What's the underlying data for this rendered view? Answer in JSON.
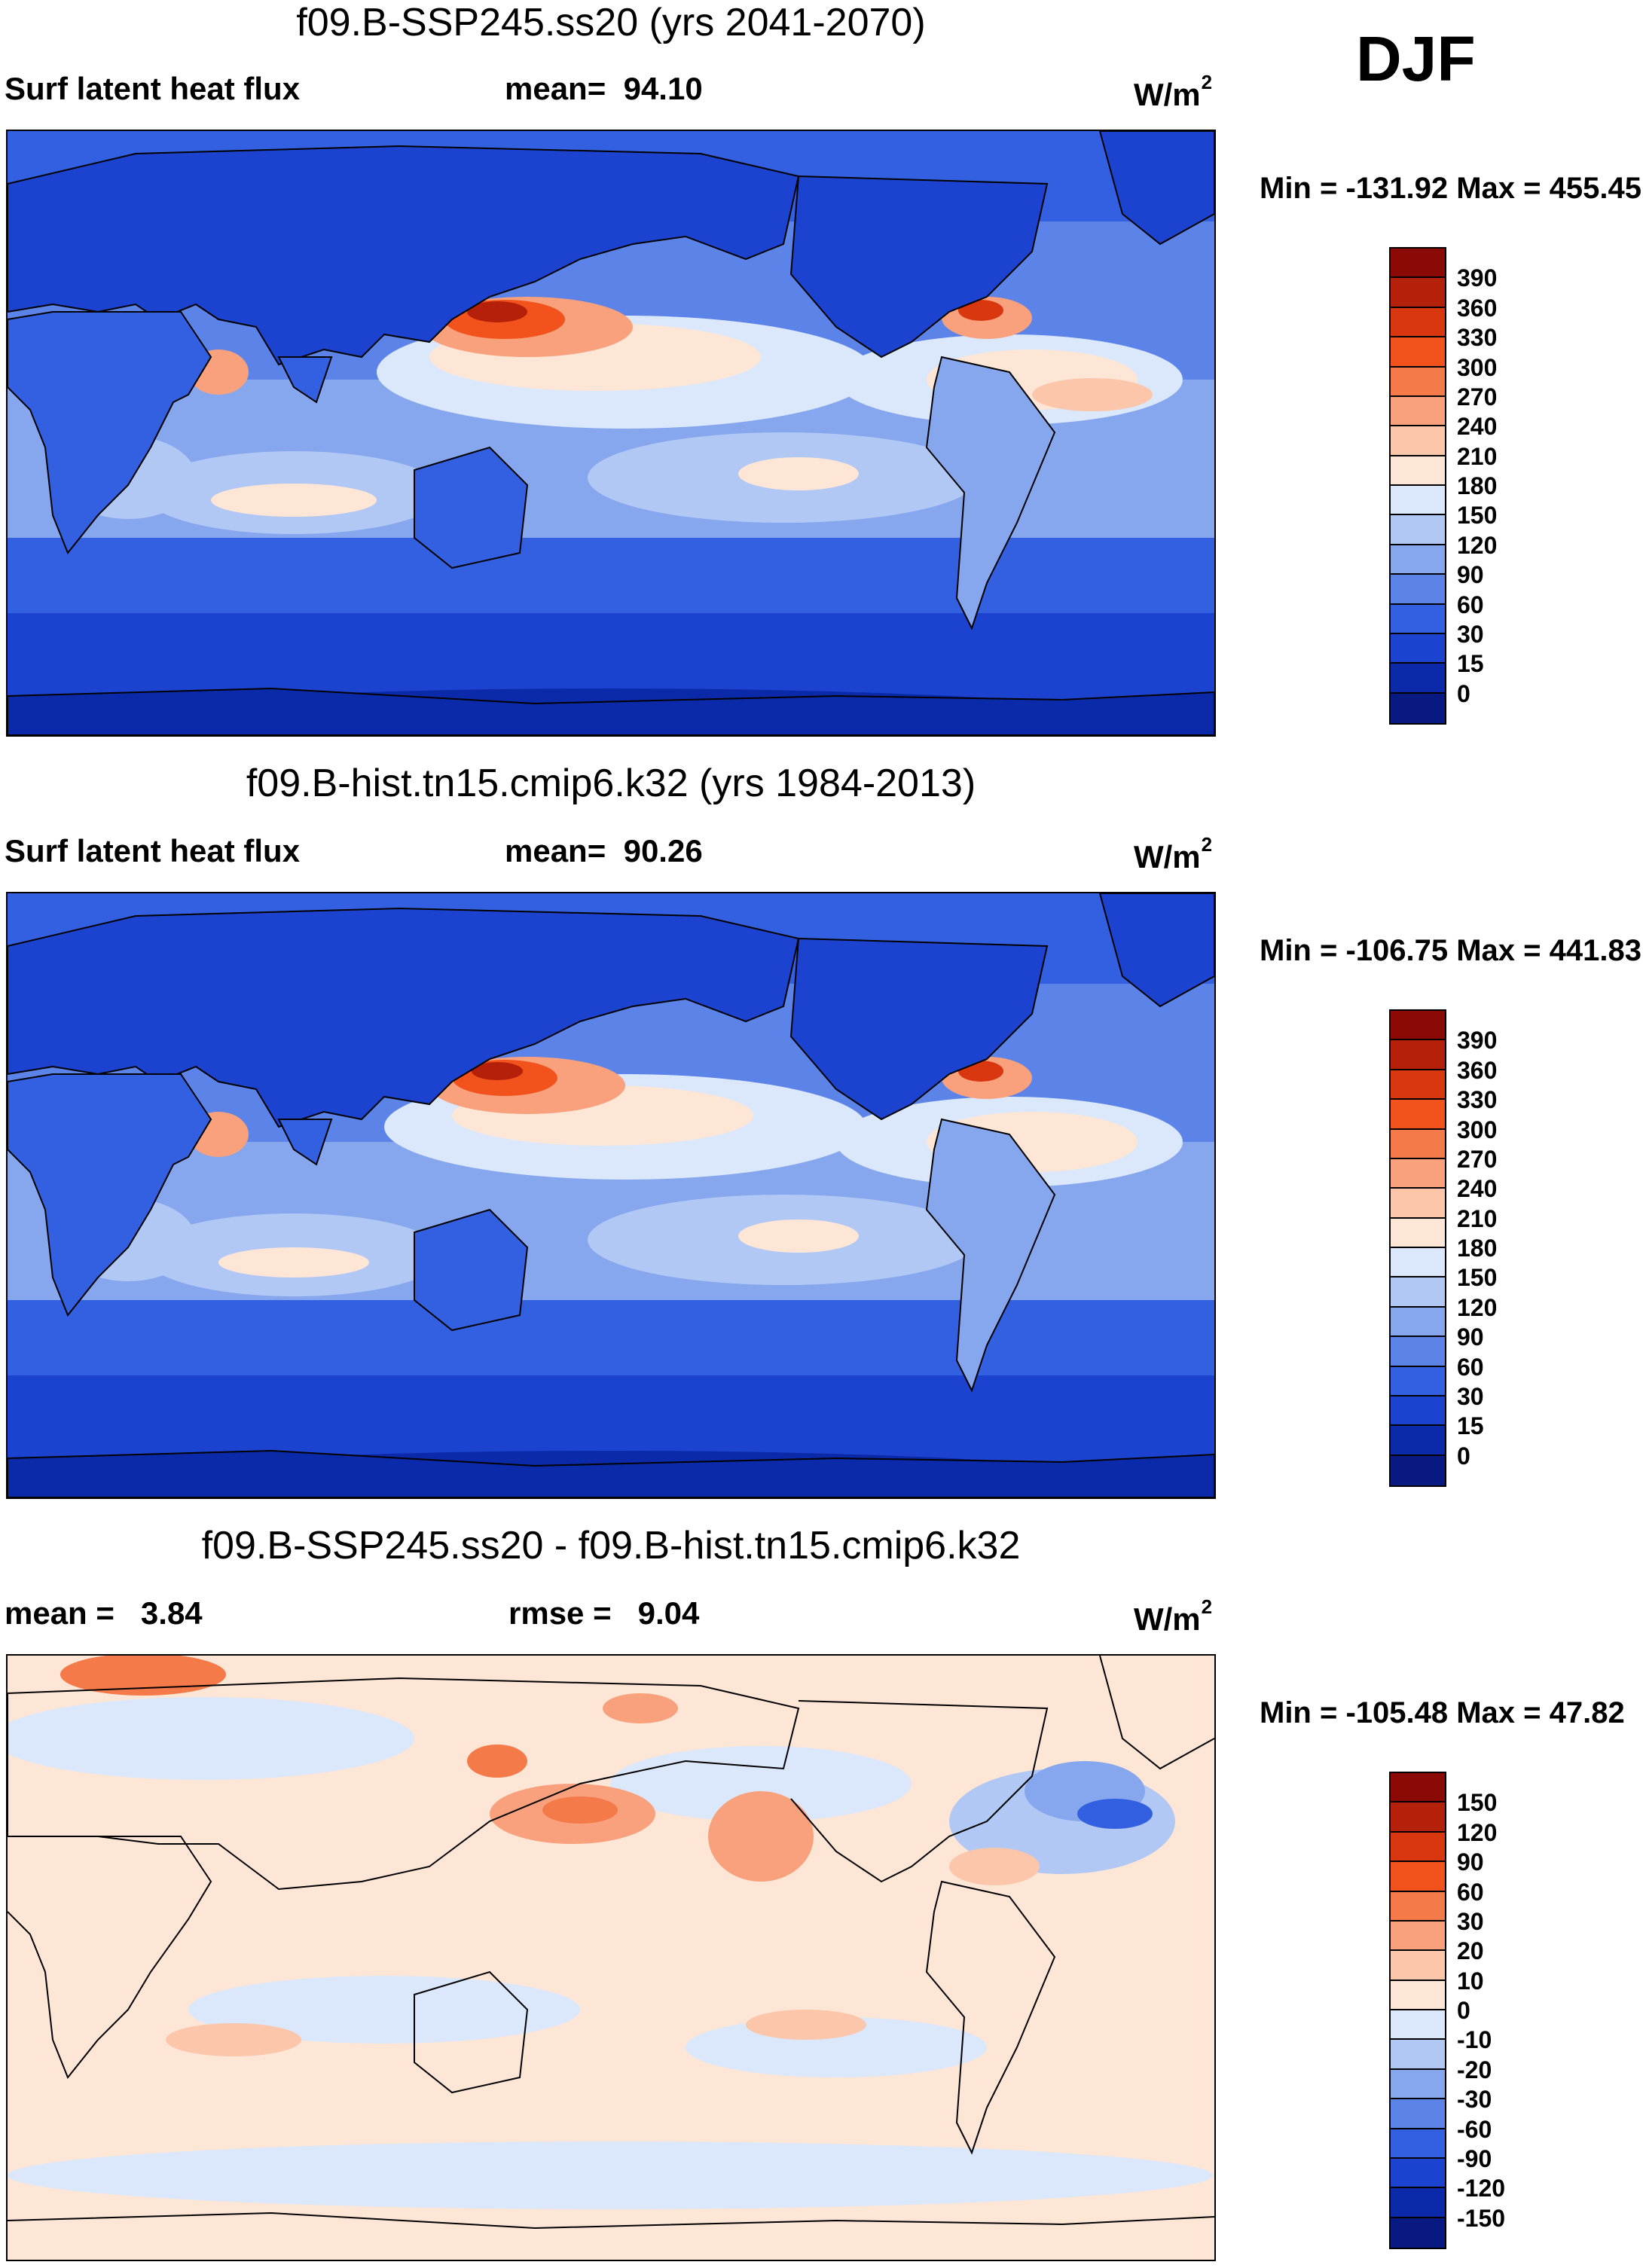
{
  "season": "DJF",
  "panels": [
    {
      "title": "f09.B-SSP245.ss20 (yrs 2041-2070)",
      "left_label": "Surf latent heat flux",
      "center_label": "mean=  94.10",
      "units_base": "W/m",
      "units_exp": "2",
      "minmax": "Min = -131.92 Max = 455.45",
      "legend": {
        "ticks": [
          "390",
          "360",
          "330",
          "300",
          "270",
          "240",
          "210",
          "180",
          "150",
          "120",
          "90",
          "60",
          "30",
          "15",
          "0"
        ],
        "colors": [
          "#8b0a06",
          "#b4200a",
          "#d9370f",
          "#f2521c",
          "#f57a4a",
          "#f8a17c",
          "#fcc6aa",
          "#fee6d6",
          "#dbe7fb",
          "#b1c8f4",
          "#86a6ee",
          "#5b83e8",
          "#3360e0",
          "#1c43cf",
          "#0b2aa9",
          "#081a82"
        ]
      }
    },
    {
      "title": "f09.B-hist.tn15.cmip6.k32 (yrs 1984-2013)",
      "left_label": "Surf latent heat flux",
      "center_label": "mean=  90.26",
      "units_base": "W/m",
      "units_exp": "2",
      "minmax": "Min = -106.75 Max = 441.83",
      "legend": {
        "ticks": [
          "390",
          "360",
          "330",
          "300",
          "270",
          "240",
          "210",
          "180",
          "150",
          "120",
          "90",
          "60",
          "30",
          "15",
          "0"
        ],
        "colors": [
          "#8b0a06",
          "#b4200a",
          "#d9370f",
          "#f2521c",
          "#f57a4a",
          "#f8a17c",
          "#fcc6aa",
          "#fee6d6",
          "#dbe7fb",
          "#b1c8f4",
          "#86a6ee",
          "#5b83e8",
          "#3360e0",
          "#1c43cf",
          "#0b2aa9",
          "#081a82"
        ]
      }
    },
    {
      "title": "f09.B-SSP245.ss20 - f09.B-hist.tn15.cmip6.k32",
      "left_label": "mean =   3.84",
      "center_label": "rmse =   9.04",
      "units_base": "W/m",
      "units_exp": "2",
      "minmax": "Min = -105.48 Max =  47.82",
      "legend": {
        "ticks": [
          "150",
          "120",
          "90",
          "60",
          "30",
          "20",
          "10",
          "0",
          "-10",
          "-20",
          "-30",
          "-60",
          "-90",
          "-120",
          "-150"
        ],
        "colors": [
          "#8b0a06",
          "#b4200a",
          "#d9370f",
          "#f2521c",
          "#f57a4a",
          "#f8a17c",
          "#fcc6aa",
          "#fee6d6",
          "#dbe7fb",
          "#b1c8f4",
          "#86a6ee",
          "#5b83e8",
          "#3360e0",
          "#1c43cf",
          "#0b2aa9",
          "#081a82"
        ]
      }
    }
  ]
}
